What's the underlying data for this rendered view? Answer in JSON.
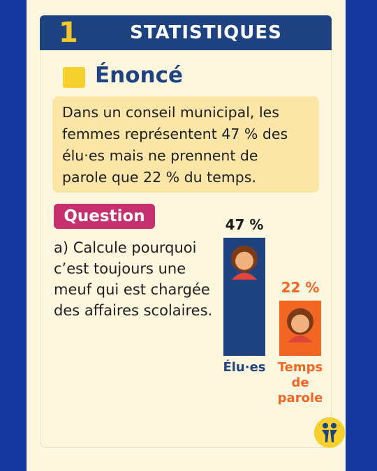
{
  "header": {
    "number": "1",
    "title": "STATISTIQUES"
  },
  "statement": {
    "title": "Énoncé",
    "text": "Dans un conseil municipal, les femmes représentent 47 % des élu·es mais ne prennent de parole que 22 % du temps."
  },
  "question": {
    "label": "Question",
    "text": "a) Calcule pourquoi c’est toujours une meuf qui est chargée des affaires scolaires."
  },
  "chart_data": {
    "type": "bar",
    "categories": [
      "Élu·es",
      "Temps de parole"
    ],
    "values": [
      47,
      22
    ],
    "value_labels": [
      "47 %",
      "22 %"
    ],
    "colors": [
      "#1f4380",
      "#f26522"
    ]
  }
}
